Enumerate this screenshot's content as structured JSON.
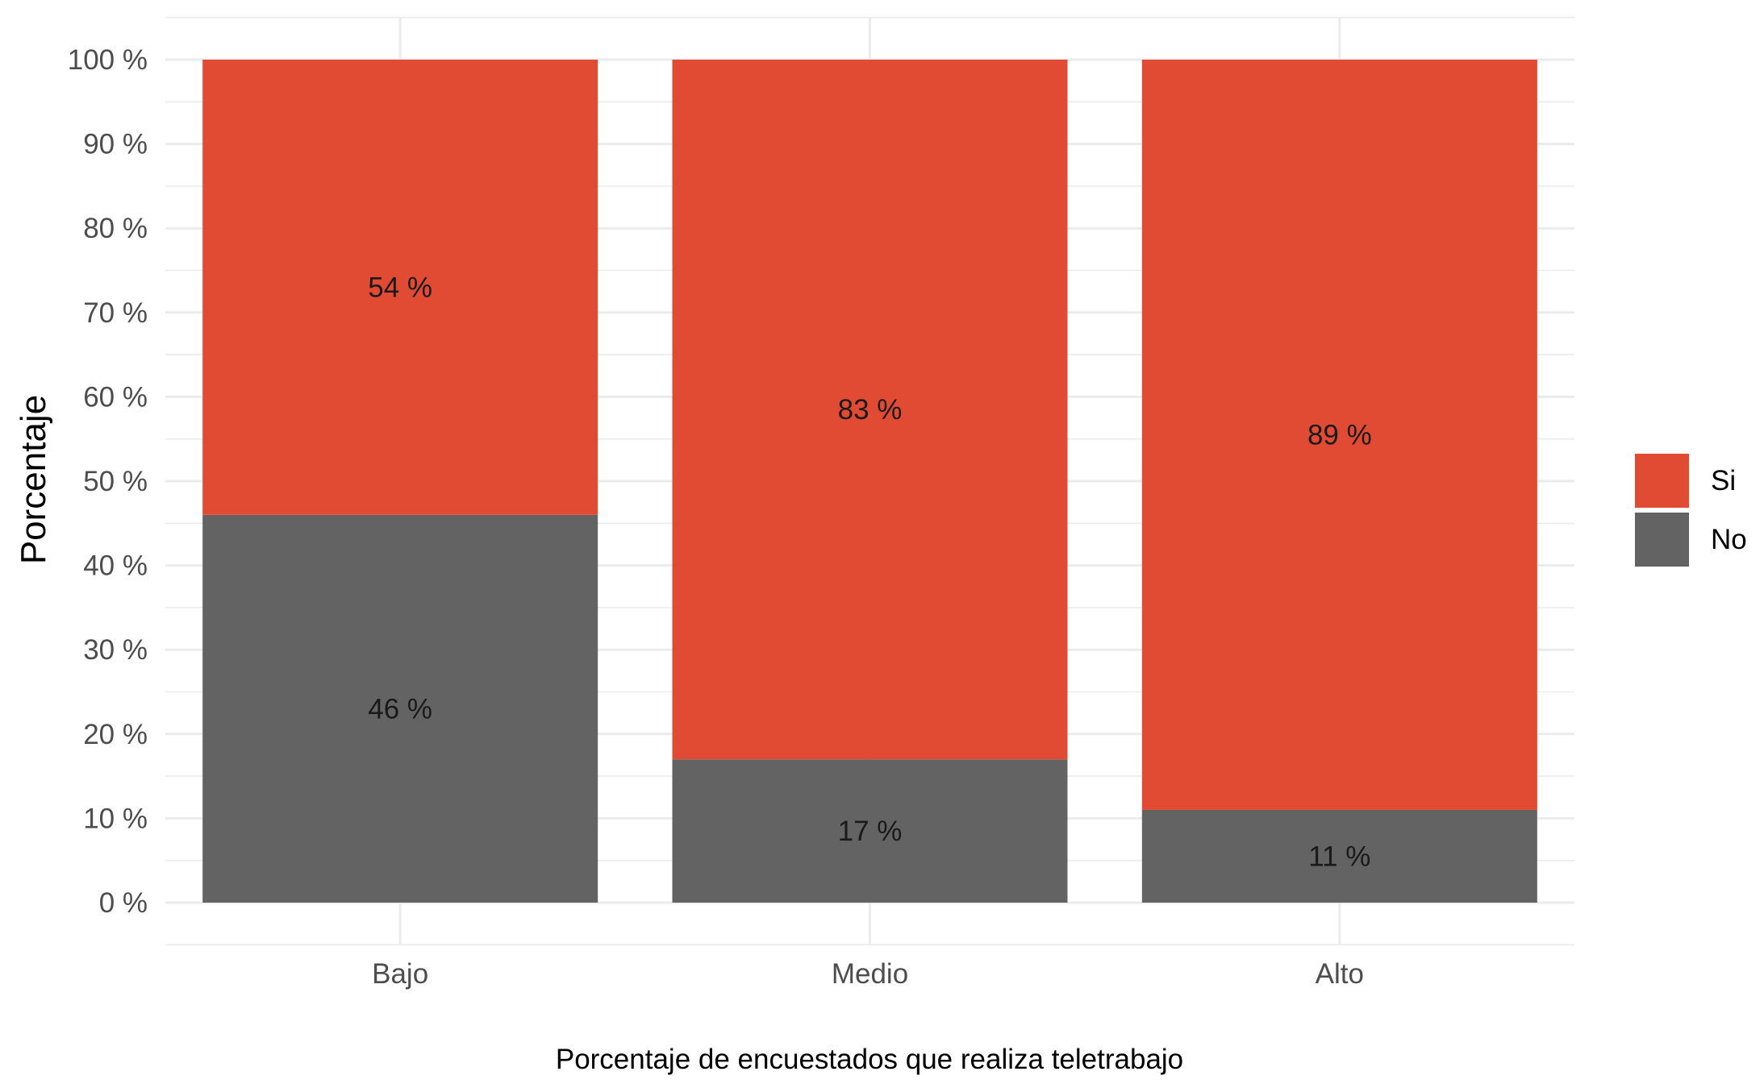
{
  "chart_data": {
    "type": "bar",
    "stacked": true,
    "categories": [
      "Bajo",
      "Medio",
      "Alto"
    ],
    "series": [
      {
        "name": "No",
        "values": [
          46,
          17,
          11
        ],
        "color": "#636363"
      },
      {
        "name": "Si",
        "values": [
          54,
          83,
          89
        ],
        "color": "#e24b33"
      }
    ],
    "data_labels": {
      "No": [
        "46 %",
        "17 %",
        "11 %"
      ],
      "Si": [
        "54 %",
        "83 %",
        "89 %"
      ]
    },
    "xlabel": "Porcentaje de encuestados que realiza teletrabajo",
    "ylabel": "Porcentaje",
    "ylim": [
      0,
      100
    ],
    "y_ticks": [
      0,
      10,
      20,
      30,
      40,
      50,
      60,
      70,
      80,
      90,
      100
    ],
    "y_tick_labels": [
      "0 %",
      "10 %",
      "20 %",
      "30 %",
      "40 %",
      "50 %",
      "60 %",
      "70 %",
      "80 %",
      "90 %",
      "100 %"
    ],
    "grid": true,
    "legend": {
      "position": "right",
      "order": [
        "Si",
        "No"
      ]
    }
  }
}
